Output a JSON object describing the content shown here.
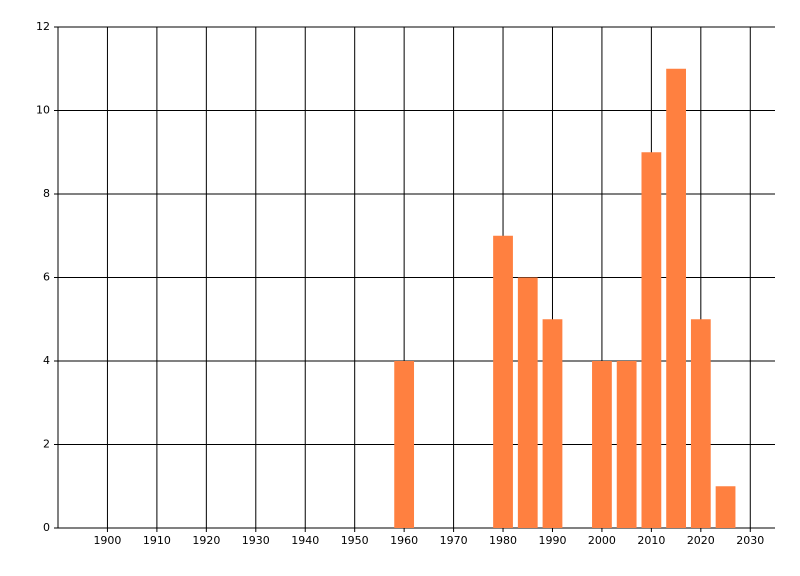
{
  "chart_data": {
    "type": "bar",
    "x": [
      1960,
      1980,
      1985,
      1990,
      2000,
      2005,
      2010,
      2015,
      2020,
      2025
    ],
    "values": [
      4,
      7,
      6,
      5,
      4,
      4,
      9,
      11,
      5,
      1
    ],
    "color": "#ff8040",
    "xlim": [
      1890,
      2035
    ],
    "xticks": [
      1900,
      1910,
      1920,
      1930,
      1940,
      1950,
      1960,
      1970,
      1980,
      1990,
      2000,
      2010,
      2020,
      2030
    ],
    "ylim": [
      0,
      12
    ],
    "yticks": [
      0,
      2,
      4,
      6,
      8,
      10,
      12
    ],
    "grid": true
  }
}
